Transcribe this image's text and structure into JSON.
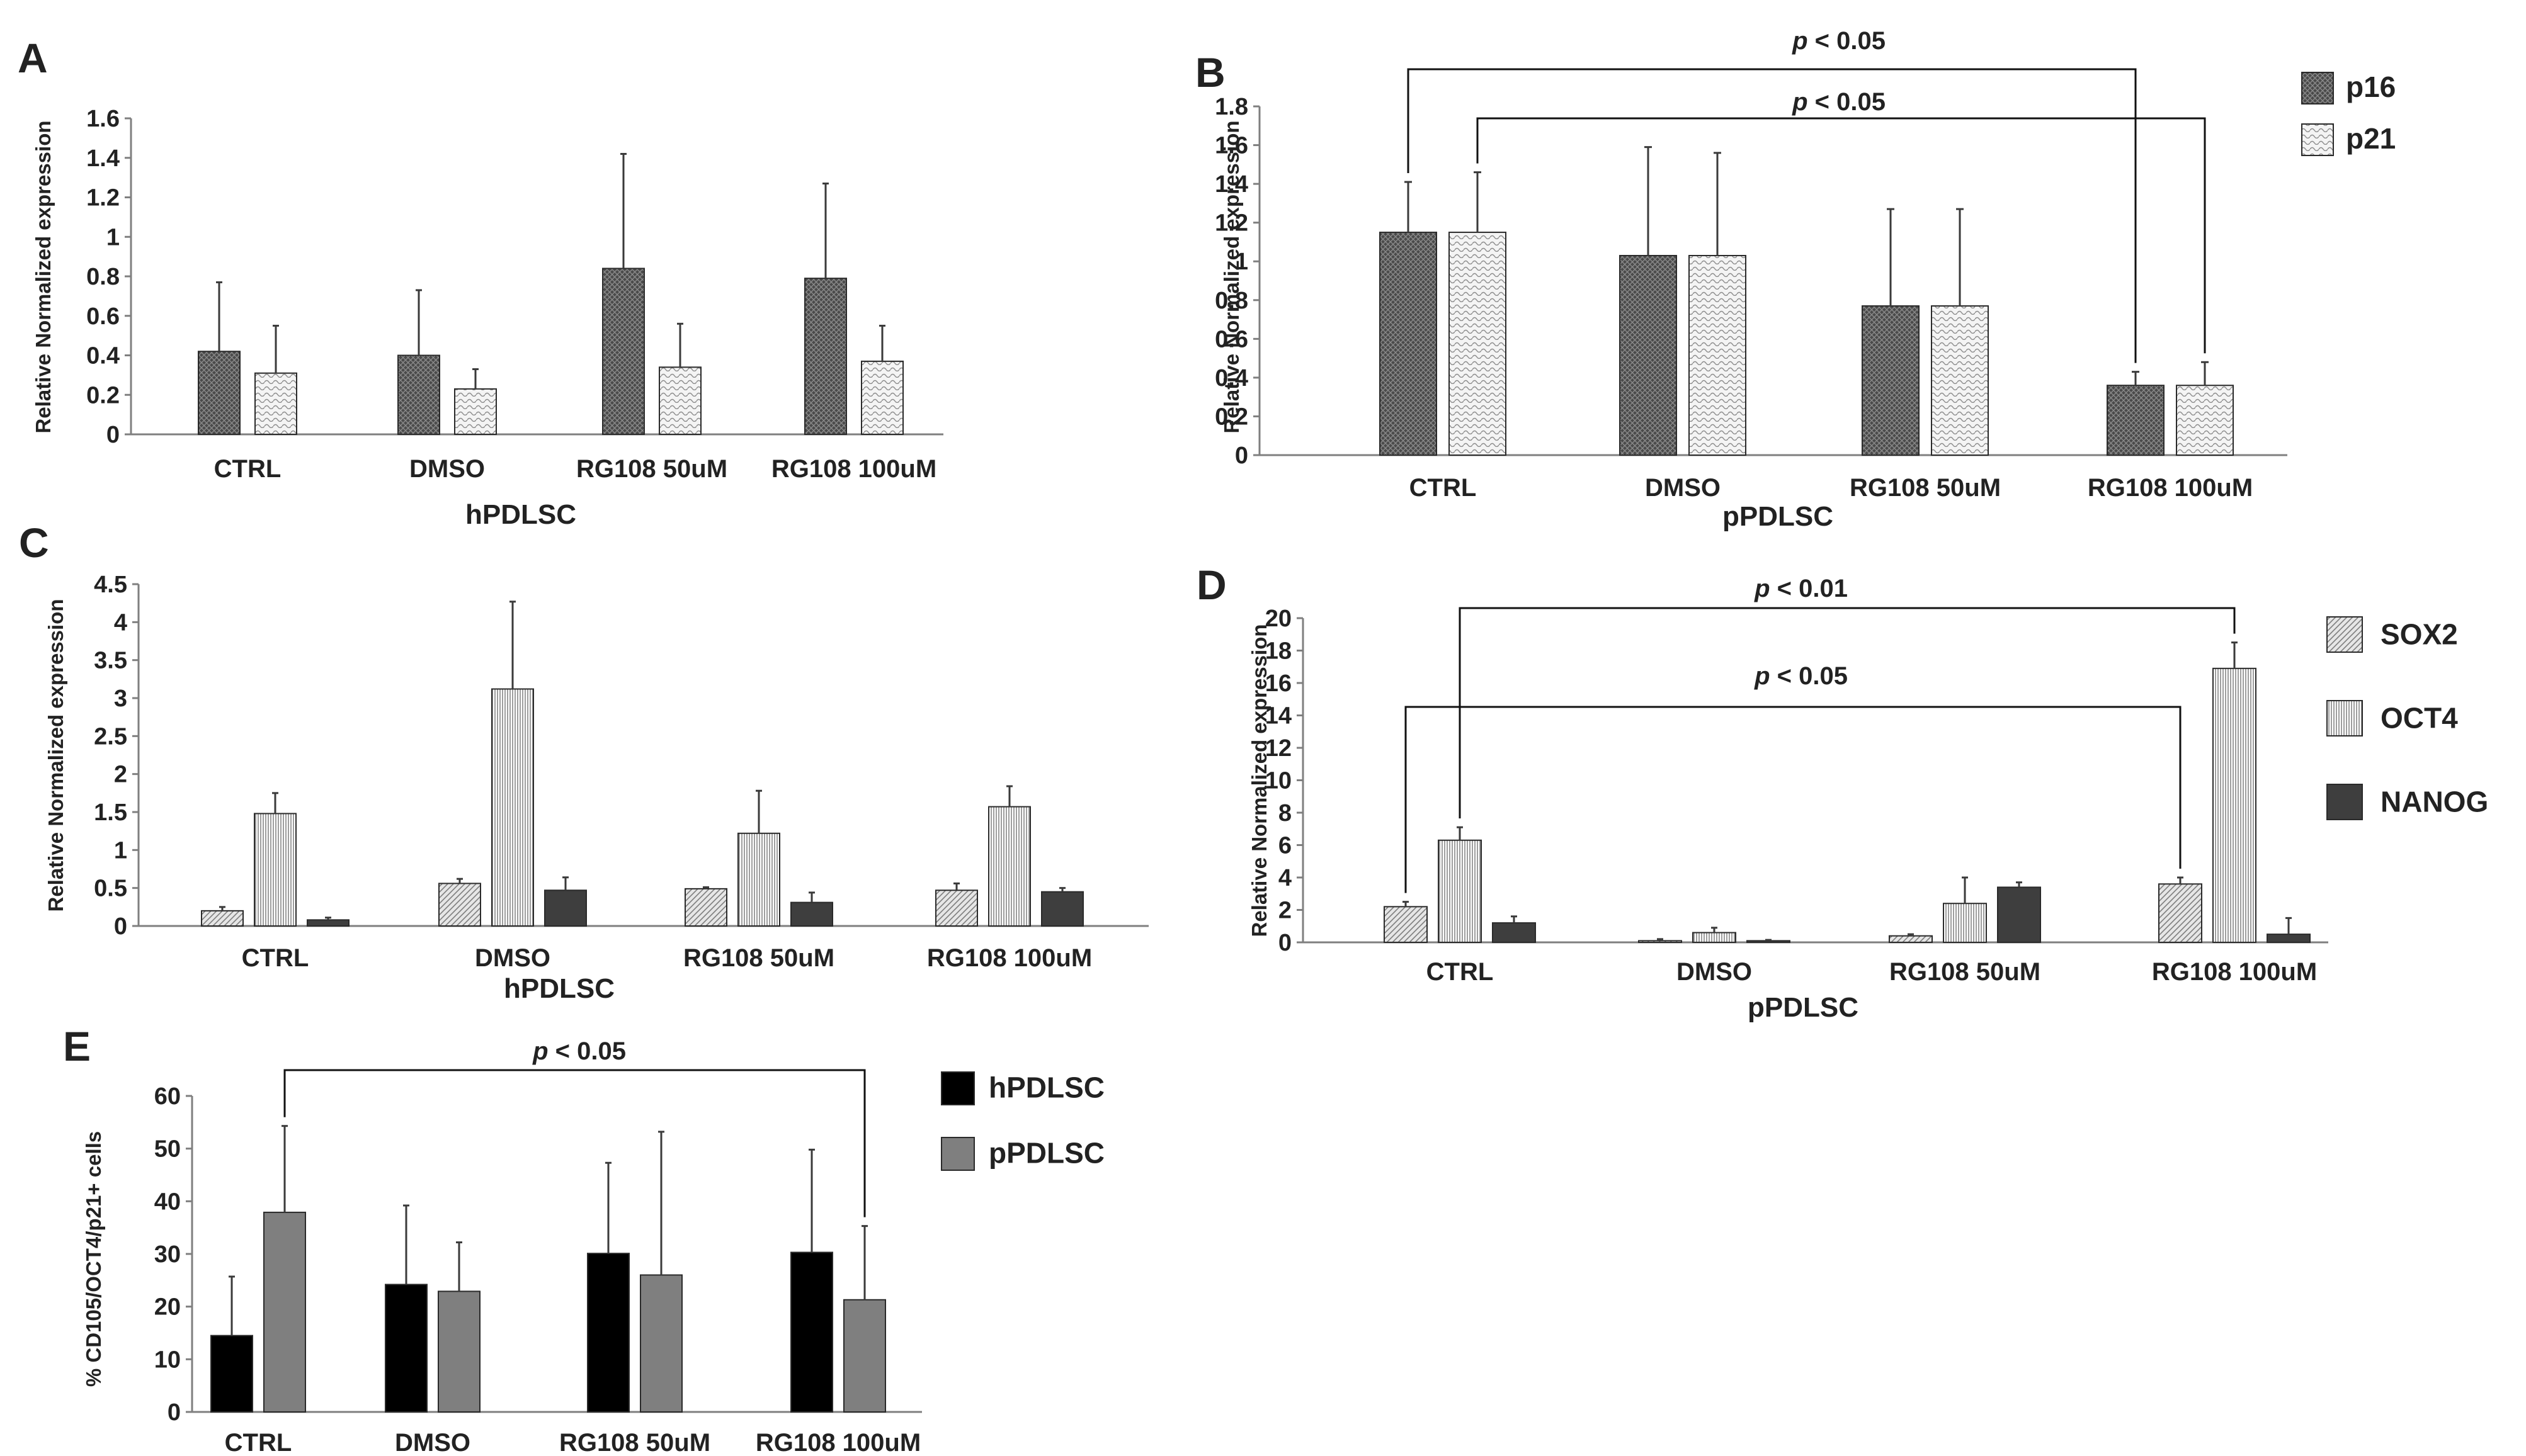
{
  "chart_data": [
    {
      "id": "A",
      "panel_label": "A",
      "type": "bar",
      "title": "",
      "xlabel": "hPDLSC",
      "ylabel": "Relative Normalized expression",
      "categories": [
        "CTRL",
        "DMSO",
        "RG108 50uM",
        "RG108 100uM"
      ],
      "ylim": [
        0,
        1.6
      ],
      "yticks": [
        0,
        0.2,
        0.4,
        0.6,
        0.8,
        1,
        1.2,
        1.4,
        1.6
      ],
      "series": [
        {
          "name": "p16",
          "pattern": "dark-cross",
          "values": [
            0.42,
            0.4,
            0.84,
            0.79
          ],
          "errors": [
            0.35,
            0.33,
            0.58,
            0.48
          ]
        },
        {
          "name": "p21",
          "pattern": "light-wave",
          "values": [
            0.31,
            0.23,
            0.34,
            0.37
          ],
          "errors": [
            0.24,
            0.1,
            0.22,
            0.18
          ]
        }
      ],
      "legend": null,
      "significance": []
    },
    {
      "id": "B",
      "panel_label": "B",
      "type": "bar",
      "title": "",
      "xlabel": "pPDLSC",
      "ylabel": "Relative Normalized expression",
      "categories": [
        "CTRL",
        "DMSO",
        "RG108 50uM",
        "RG108 100uM"
      ],
      "ylim": [
        0,
        1.8
      ],
      "yticks": [
        0,
        0.2,
        0.4,
        0.6,
        0.8,
        1,
        1.2,
        1.4,
        1.6,
        1.8
      ],
      "series": [
        {
          "name": "p16",
          "pattern": "dark-cross",
          "values": [
            1.15,
            1.03,
            0.77,
            0.36
          ],
          "errors": [
            0.26,
            0.56,
            0.5,
            0.07
          ]
        },
        {
          "name": "p21",
          "pattern": "light-wave",
          "values": [
            1.15,
            1.03,
            0.77,
            0.36
          ],
          "errors": [
            0.31,
            0.53,
            0.5,
            0.12
          ]
        }
      ],
      "legend": {
        "items": [
          {
            "label": "p16",
            "pattern": "dark-cross"
          },
          {
            "label": "p21",
            "pattern": "light-wave"
          }
        ],
        "position": "top-right"
      },
      "significance": [
        {
          "label": "< 0.05",
          "from": [
            0,
            0
          ],
          "to": [
            3,
            0
          ]
        },
        {
          "label": "< 0.05",
          "from": [
            0,
            1
          ],
          "to": [
            3,
            1
          ]
        }
      ]
    },
    {
      "id": "C",
      "panel_label": "C",
      "type": "bar",
      "title": "",
      "xlabel": "hPDLSC",
      "ylabel": "Relative Normalized expression",
      "categories": [
        "CTRL",
        "DMSO",
        "RG108 50uM",
        "RG108 100uM"
      ],
      "ylim": [
        0,
        4.5
      ],
      "yticks": [
        0,
        0.5,
        1,
        1.5,
        2,
        2.5,
        3,
        3.5,
        4,
        4.5
      ],
      "series": [
        {
          "name": "SOX2",
          "pattern": "light-diag",
          "values": [
            0.2,
            0.56,
            0.49,
            0.47
          ],
          "errors": [
            0.05,
            0.06,
            0.02,
            0.09
          ]
        },
        {
          "name": "OCT4",
          "pattern": "vertical-lines",
          "values": [
            1.48,
            3.12,
            1.22,
            1.57
          ],
          "errors": [
            0.27,
            1.15,
            0.56,
            0.27
          ]
        },
        {
          "name": "NANOG",
          "pattern": "dark-solid",
          "values": [
            0.08,
            0.47,
            0.31,
            0.45
          ],
          "errors": [
            0.03,
            0.17,
            0.13,
            0.05
          ]
        }
      ],
      "legend": null,
      "significance": []
    },
    {
      "id": "D",
      "panel_label": "D",
      "type": "bar",
      "title": "",
      "xlabel": "pPDLSC",
      "ylabel": "Relative Normalized expression",
      "categories": [
        "CTRL",
        "DMSO",
        "RG108 50uM",
        "RG108 100uM"
      ],
      "ylim": [
        0,
        20
      ],
      "yticks": [
        0,
        2,
        4,
        6,
        8,
        10,
        12,
        14,
        16,
        18,
        20
      ],
      "series": [
        {
          "name": "SOX2",
          "pattern": "light-diag",
          "values": [
            2.2,
            0.1,
            0.4,
            3.6
          ],
          "errors": [
            0.3,
            0.1,
            0.1,
            0.4
          ]
        },
        {
          "name": "OCT4",
          "pattern": "vertical-lines",
          "values": [
            6.3,
            0.6,
            2.4,
            16.9
          ],
          "errors": [
            0.8,
            0.3,
            1.6,
            1.6
          ]
        },
        {
          "name": "NANOG",
          "pattern": "dark-solid",
          "values": [
            1.2,
            0.1,
            3.4,
            0.5
          ],
          "errors": [
            0.4,
            0.05,
            0.3,
            1.0
          ]
        }
      ],
      "legend": {
        "items": [
          {
            "label": "SOX2",
            "pattern": "light-diag"
          },
          {
            "label": "OCT4",
            "pattern": "vertical-lines"
          },
          {
            "label": "NANOG",
            "pattern": "dark-solid"
          }
        ],
        "position": "right"
      },
      "significance": [
        {
          "label": "< 0.01",
          "from": [
            0,
            1
          ],
          "to": [
            3,
            1
          ]
        },
        {
          "label": "< 0.05",
          "from": [
            0,
            0
          ],
          "to": [
            3,
            0
          ]
        }
      ]
    },
    {
      "id": "E",
      "panel_label": "E",
      "type": "bar",
      "title": "",
      "xlabel": "",
      "ylabel": "% CD105/OCT4/p21+ cells",
      "categories": [
        "CTRL",
        "DMSO",
        "RG108 50uM",
        "RG108 100uM"
      ],
      "ylim": [
        0,
        60
      ],
      "yticks": [
        0,
        10,
        20,
        30,
        40,
        50,
        60
      ],
      "series": [
        {
          "name": "hPDLSC",
          "pattern": "black",
          "values": [
            14.5,
            24.2,
            30.1,
            30.3
          ],
          "errors": [
            11.2,
            15.0,
            17.2,
            19.5
          ]
        },
        {
          "name": "pPDLSC",
          "pattern": "grey",
          "values": [
            37.9,
            22.9,
            26.0,
            21.3
          ],
          "errors": [
            16.4,
            9.3,
            27.2,
            14.0
          ]
        }
      ],
      "legend": {
        "items": [
          {
            "label": "hPDLSC",
            "pattern": "black"
          },
          {
            "label": "pPDLSC",
            "pattern": "grey"
          }
        ],
        "position": "top-right"
      },
      "significance": [
        {
          "label": "< 0.05",
          "from": [
            0,
            1
          ],
          "to": [
            3,
            1
          ]
        }
      ]
    }
  ],
  "significance_prefix": "p"
}
